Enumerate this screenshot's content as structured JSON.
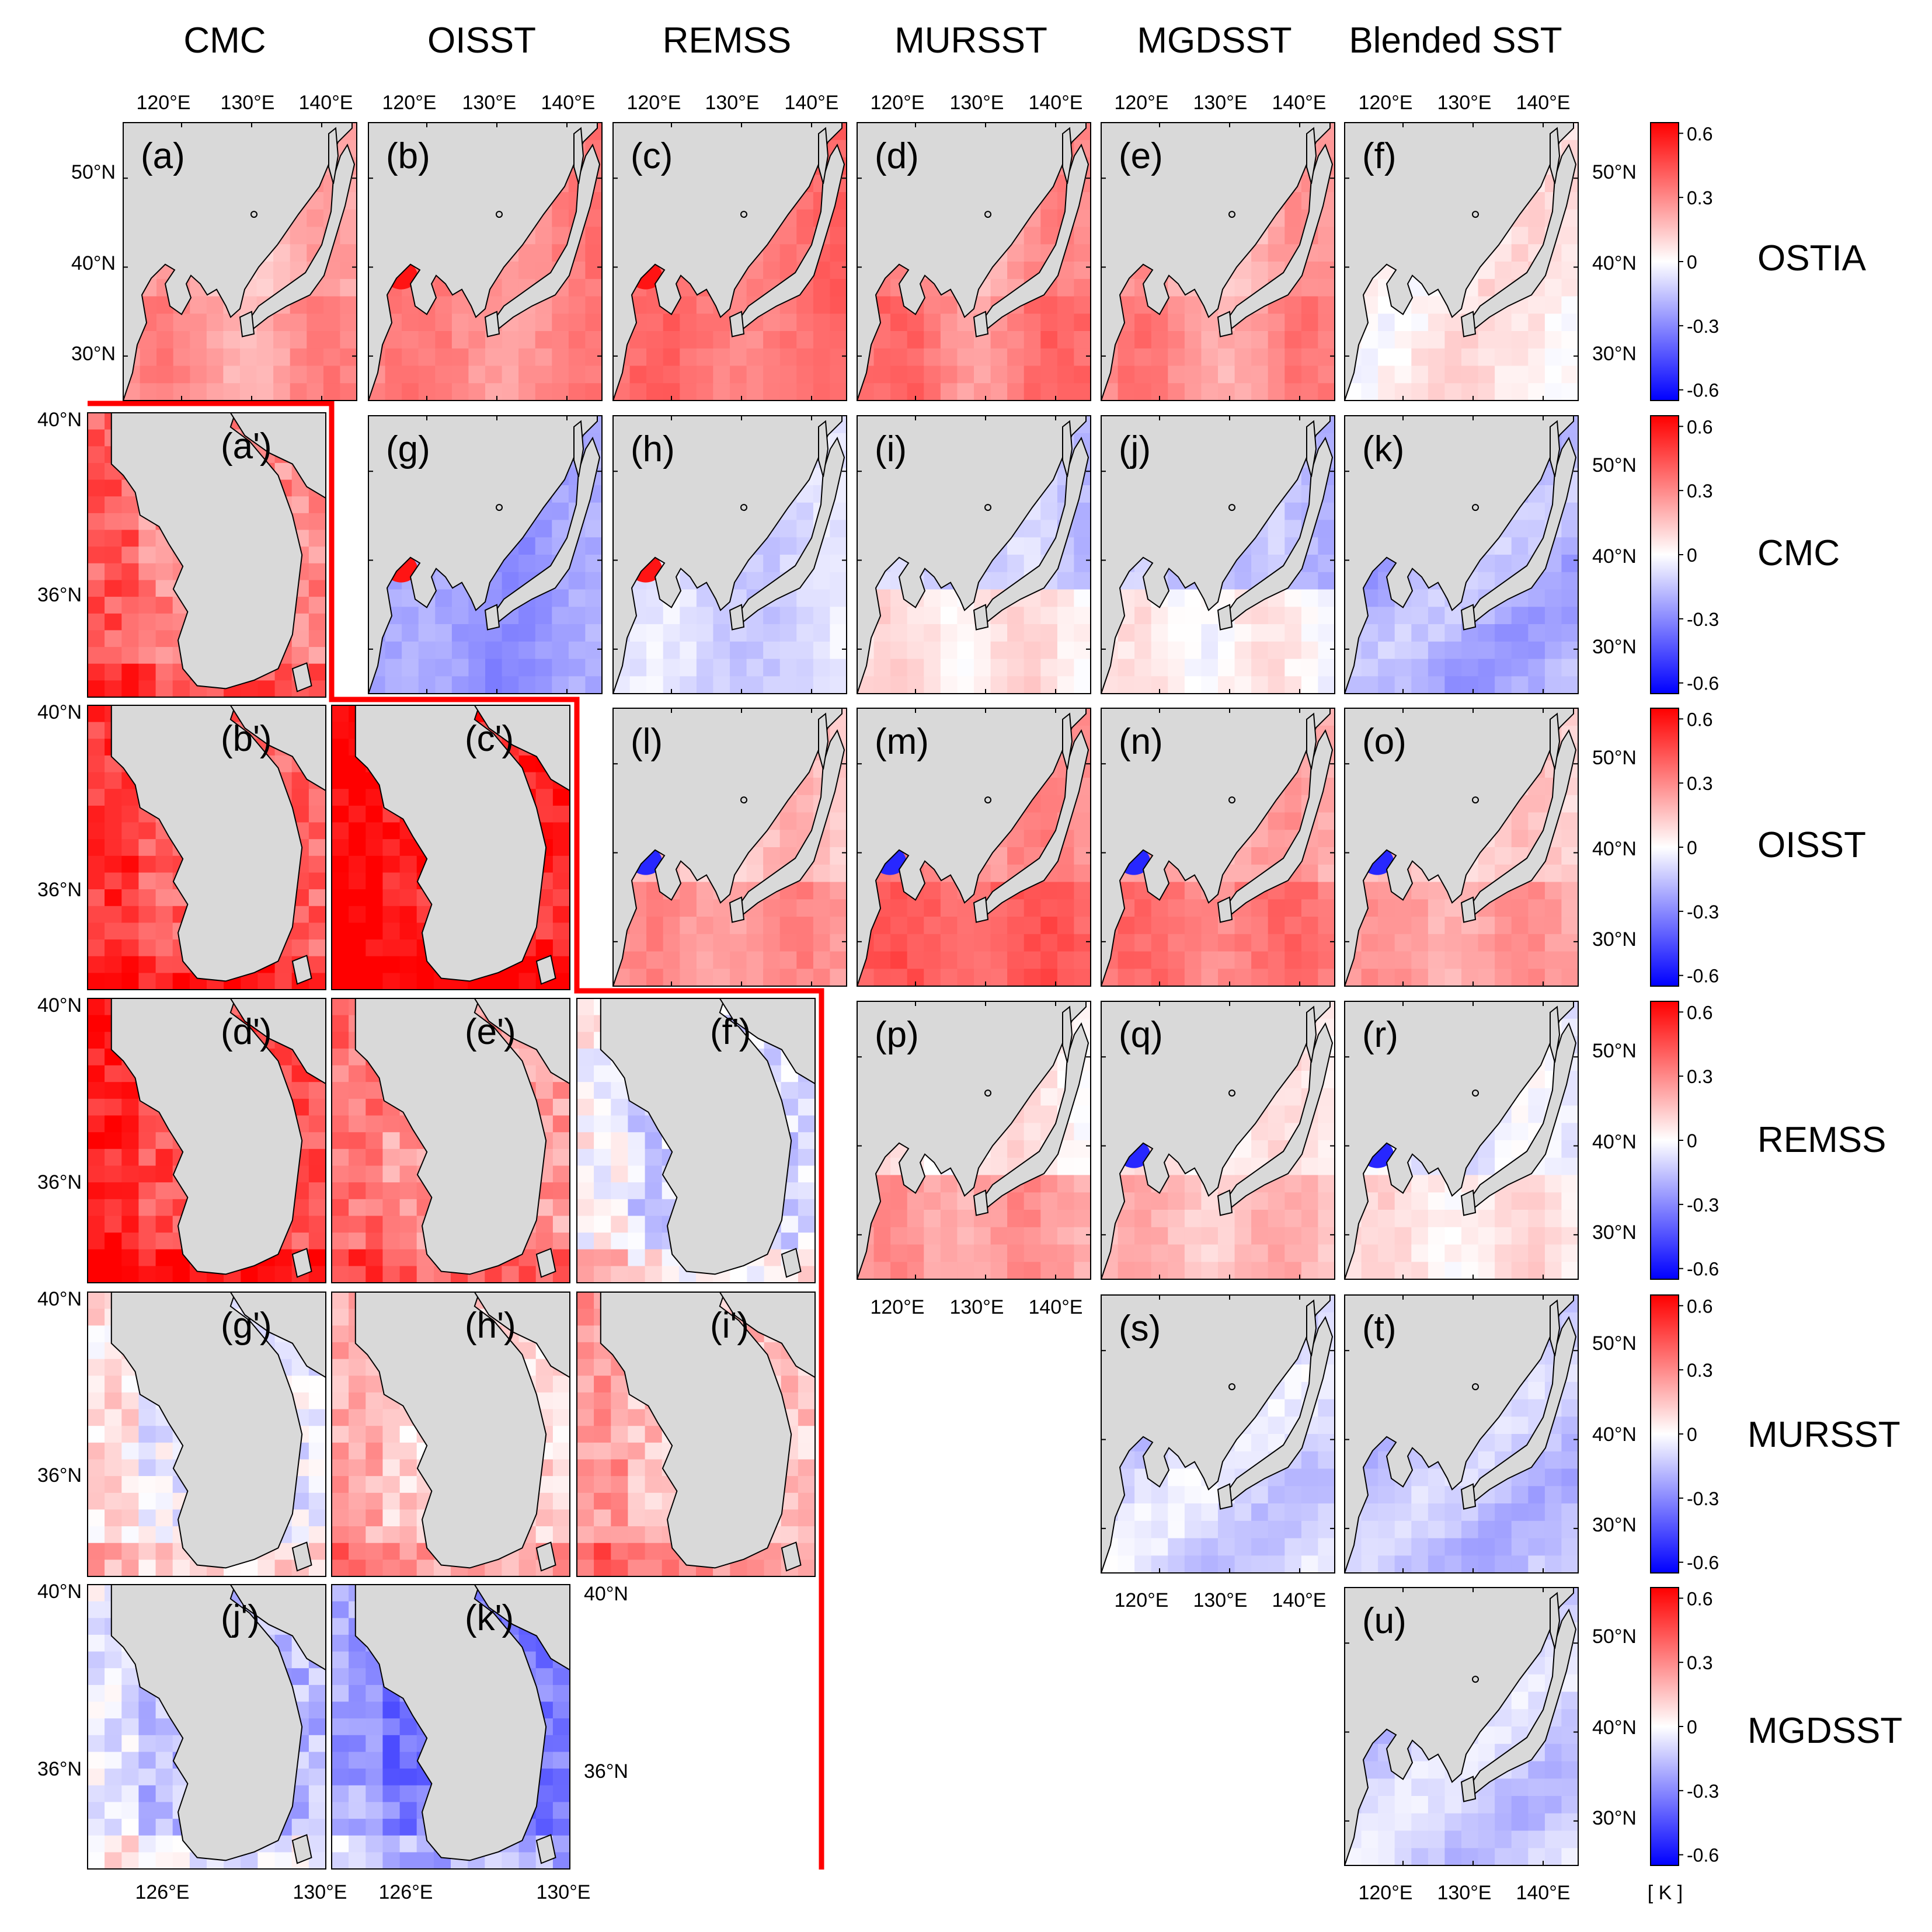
{
  "columns": [
    "CMC",
    "OISST",
    "REMSS",
    "MURSST",
    "MGDSST",
    "Blended SST"
  ],
  "rows": [
    "OSTIA",
    "CMC",
    "OISST",
    "REMSS",
    "MURSST",
    "MGDSST"
  ],
  "panels": {
    "region": [
      {
        "label": "(a)",
        "row": 0,
        "col": 0,
        "tone": 0.18,
        "pattern": "warm"
      },
      {
        "label": "(b)",
        "row": 0,
        "col": 1,
        "tone": 0.3,
        "pattern": "bohai-warm"
      },
      {
        "label": "(c)",
        "row": 0,
        "col": 2,
        "tone": 0.35,
        "pattern": "bohai-warm"
      },
      {
        "label": "(d)",
        "row": 0,
        "col": 3,
        "tone": 0.25,
        "pattern": "warm"
      },
      {
        "label": "(e)",
        "row": 0,
        "col": 4,
        "tone": 0.2,
        "pattern": "warm"
      },
      {
        "label": "(f)",
        "row": 0,
        "col": 5,
        "tone": 0.05,
        "pattern": "neutral"
      },
      {
        "label": "(g)",
        "row": 1,
        "col": 1,
        "tone": -0.25,
        "pattern": "bohai-warm"
      },
      {
        "label": "(h)",
        "row": 1,
        "col": 2,
        "tone": -0.1,
        "pattern": "bohai-warm"
      },
      {
        "label": "(i)",
        "row": 1,
        "col": 3,
        "tone": -0.08,
        "pattern": "mixed"
      },
      {
        "label": "(j)",
        "row": 1,
        "col": 4,
        "tone": -0.12,
        "pattern": "mixed"
      },
      {
        "label": "(k)",
        "row": 1,
        "col": 5,
        "tone": -0.2,
        "pattern": "cool"
      },
      {
        "label": "(l)",
        "row": 2,
        "col": 2,
        "tone": 0.15,
        "pattern": "bohai-cool"
      },
      {
        "label": "(m)",
        "row": 2,
        "col": 3,
        "tone": 0.28,
        "pattern": "bohai-cool"
      },
      {
        "label": "(n)",
        "row": 2,
        "col": 4,
        "tone": 0.22,
        "pattern": "bohai-cool"
      },
      {
        "label": "(o)",
        "row": 2,
        "col": 5,
        "tone": 0.12,
        "pattern": "bohai-cool"
      },
      {
        "label": "(p)",
        "row": 3,
        "col": 3,
        "tone": 0.1,
        "pattern": "mixed"
      },
      {
        "label": "(q)",
        "row": 3,
        "col": 4,
        "tone": 0.05,
        "pattern": "bohai-cool"
      },
      {
        "label": "(r)",
        "row": 3,
        "col": 5,
        "tone": -0.05,
        "pattern": "bohai-cool"
      },
      {
        "label": "(s)",
        "row": 4,
        "col": 4,
        "tone": -0.1,
        "pattern": "cool"
      },
      {
        "label": "(t)",
        "row": 4,
        "col": 5,
        "tone": -0.15,
        "pattern": "cool"
      },
      {
        "label": "(u)",
        "row": 5,
        "col": 5,
        "tone": -0.12,
        "pattern": "cool"
      }
    ],
    "korea": [
      {
        "label": "(a')",
        "row": 1,
        "col": 0,
        "tone": 0.3
      },
      {
        "label": "(b')",
        "row": 2,
        "col": 0,
        "tone": 0.4
      },
      {
        "label": "(c')",
        "row": 2,
        "col": 1,
        "tone": 0.55
      },
      {
        "label": "(d')",
        "row": 3,
        "col": 0,
        "tone": 0.45
      },
      {
        "label": "(e')",
        "row": 3,
        "col": 1,
        "tone": 0.25
      },
      {
        "label": "(f')",
        "row": 3,
        "col": 2,
        "tone": -0.1
      },
      {
        "label": "(g')",
        "row": 4,
        "col": 0,
        "tone": -0.05
      },
      {
        "label": "(h')",
        "row": 4,
        "col": 1,
        "tone": 0.1
      },
      {
        "label": "(i')",
        "row": 4,
        "col": 2,
        "tone": 0.15
      },
      {
        "label": "(j')",
        "row": 5,
        "col": 0,
        "tone": -0.18
      },
      {
        "label": "(k')",
        "row": 5,
        "col": 1,
        "tone": -0.35
      }
    ]
  },
  "axes": {
    "lon_ticks": [
      "120°E",
      "130°E",
      "140°E"
    ],
    "lat_ticks": [
      "50°N",
      "40°N",
      "30°N"
    ],
    "korea_lat_ticks": [
      "40°N",
      "36°N"
    ],
    "korea_lon_ticks": [
      "126°E",
      "130°E"
    ]
  },
  "colorbar": {
    "ticks": [
      "0.6",
      "0.3",
      "0",
      "-0.3",
      "-0.6"
    ],
    "unit": "[ K ]",
    "range": [
      -0.65,
      0.65
    ],
    "colors": {
      "high": "#ff0000",
      "mid": "#ffffff",
      "low": "#0000ff"
    }
  },
  "colors": {
    "land": "#d9d9d9",
    "coast": "#000000",
    "divider": "#ff0000"
  }
}
